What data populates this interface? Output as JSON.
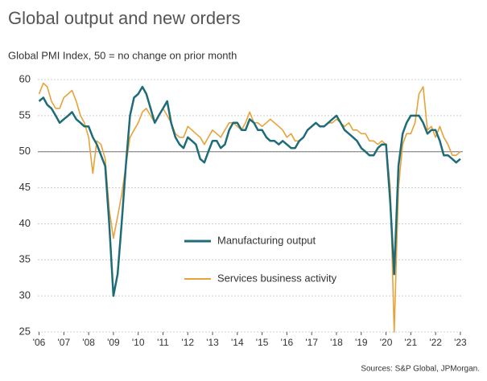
{
  "chart_data": {
    "type": "line",
    "title": "Global output and new orders",
    "subtitle": "Global PMI Index, 50 = no change on prior month",
    "source": "Sources: S&P Global, JPMorgan.",
    "x": [
      2006.0,
      2006.17,
      2006.33,
      2006.5,
      2006.67,
      2006.83,
      2007.0,
      2007.17,
      2007.33,
      2007.5,
      2007.67,
      2007.83,
      2008.0,
      2008.17,
      2008.33,
      2008.5,
      2008.67,
      2008.83,
      2009.0,
      2009.17,
      2009.33,
      2009.5,
      2009.67,
      2009.83,
      2010.0,
      2010.17,
      2010.33,
      2010.5,
      2010.67,
      2010.83,
      2011.0,
      2011.17,
      2011.33,
      2011.5,
      2011.67,
      2011.83,
      2012.0,
      2012.17,
      2012.33,
      2012.5,
      2012.67,
      2012.83,
      2013.0,
      2013.17,
      2013.33,
      2013.5,
      2013.67,
      2013.83,
      2014.0,
      2014.17,
      2014.33,
      2014.5,
      2014.67,
      2014.83,
      2015.0,
      2015.17,
      2015.33,
      2015.5,
      2015.67,
      2015.83,
      2016.0,
      2016.17,
      2016.33,
      2016.5,
      2016.67,
      2016.83,
      2017.0,
      2017.17,
      2017.33,
      2017.5,
      2017.67,
      2017.83,
      2018.0,
      2018.17,
      2018.33,
      2018.5,
      2018.67,
      2018.83,
      2019.0,
      2019.17,
      2019.33,
      2019.5,
      2019.67,
      2019.83,
      2020.0,
      2020.17,
      2020.33,
      2020.5,
      2020.67,
      2020.83,
      2021.0,
      2021.17,
      2021.33,
      2021.5,
      2021.67,
      2021.83,
      2022.0,
      2022.17,
      2022.33,
      2022.5,
      2022.67,
      2022.83,
      2023.0
    ],
    "series": [
      {
        "name": "Manufacturing output",
        "color": "#1d6c78",
        "values": [
          57,
          57.5,
          56.5,
          56,
          55,
          54,
          54.5,
          55,
          55.5,
          54.5,
          54,
          53.5,
          53.5,
          52,
          51,
          49.5,
          48,
          40,
          30,
          33,
          40,
          48,
          55,
          57.5,
          58,
          59,
          58,
          56,
          54,
          55,
          56,
          57,
          54,
          52,
          51,
          50.5,
          52,
          51.5,
          51,
          49,
          48.5,
          50,
          51.5,
          51.5,
          50.5,
          51,
          53,
          54,
          54,
          53,
          53,
          54.5,
          54,
          53,
          53,
          52,
          51.5,
          51.5,
          51,
          51.5,
          51,
          50.5,
          50.5,
          51.5,
          52,
          53,
          53.5,
          54,
          53.5,
          53.5,
          54,
          54.5,
          55,
          54,
          53,
          52.5,
          52,
          51.5,
          50.5,
          50,
          49.5,
          49.5,
          50.5,
          51,
          51,
          43,
          33,
          48,
          52.5,
          54,
          55,
          55,
          55,
          54,
          52.5,
          53,
          53,
          51.5,
          49.5,
          49.5,
          49,
          48.5,
          49
        ]
      },
      {
        "name": "Services business activity",
        "color": "#e8a23a",
        "values": [
          58,
          59.5,
          59,
          57,
          56,
          56,
          57.5,
          58,
          58.5,
          57,
          55,
          54,
          52,
          47,
          51.5,
          51,
          49,
          42,
          38,
          41,
          44,
          48,
          52,
          53,
          54,
          55.5,
          56,
          55,
          54,
          55,
          56,
          55,
          54,
          52.5,
          52,
          52,
          53.5,
          53,
          52.5,
          52,
          51,
          52,
          53,
          52.5,
          52,
          53,
          54,
          54,
          53.5,
          53,
          54,
          55.5,
          54,
          54,
          53.5,
          54,
          54.5,
          54,
          53.5,
          53,
          52,
          52.5,
          51.5,
          51.5,
          52,
          53,
          53.5,
          54,
          53.5,
          53.5,
          54,
          54,
          54.5,
          54,
          53.5,
          54,
          53,
          53,
          52.5,
          52.5,
          51.5,
          51.5,
          51,
          51.5,
          51,
          45,
          25,
          45,
          51,
          52.5,
          52.5,
          54,
          58,
          59,
          53,
          53.5,
          52,
          53.5,
          52,
          51,
          49.5,
          49.5,
          50
        ]
      }
    ],
    "xlim": [
      2005.95,
      2023.1
    ],
    "xticks": [
      {
        "value": 2006,
        "label": "'06"
      },
      {
        "value": 2007,
        "label": "'07"
      },
      {
        "value": 2008,
        "label": "'08"
      },
      {
        "value": 2009,
        "label": "'09"
      },
      {
        "value": 2010,
        "label": "'10"
      },
      {
        "value": 2011,
        "label": "'11"
      },
      {
        "value": 2012,
        "label": "'12"
      },
      {
        "value": 2013,
        "label": "'13"
      },
      {
        "value": 2014,
        "label": "'14"
      },
      {
        "value": 2015,
        "label": "'15"
      },
      {
        "value": 2016,
        "label": "'16"
      },
      {
        "value": 2017,
        "label": "'17"
      },
      {
        "value": 2018,
        "label": "'18"
      },
      {
        "value": 2019,
        "label": "'19"
      },
      {
        "value": 2020,
        "label": "'20"
      },
      {
        "value": 2021,
        "label": "'21"
      },
      {
        "value": 2022,
        "label": "'22"
      },
      {
        "value": 2023,
        "label": "'23"
      }
    ],
    "ylim": [
      25,
      60
    ],
    "yticks": [
      25,
      30,
      35,
      40,
      45,
      50,
      55,
      60
    ],
    "reference_line": 50,
    "grid": true
  }
}
